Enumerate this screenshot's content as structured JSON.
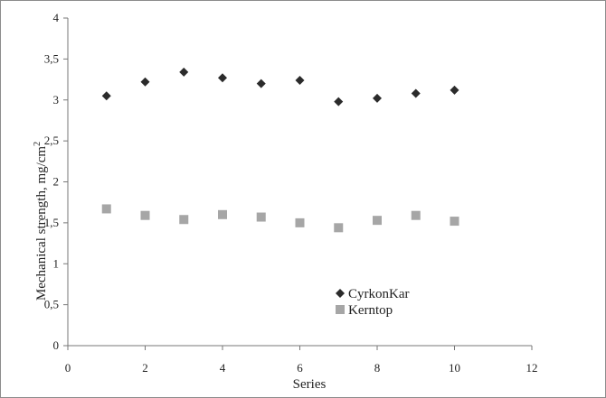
{
  "chart_data": {
    "type": "scatter",
    "xlabel": "Series",
    "ylabel_main": "Mechanical strength, mg/cm",
    "ylabel_sup": "2",
    "xlim": [
      0,
      12
    ],
    "ylim": [
      0,
      4
    ],
    "x_ticks": [
      "0",
      "2",
      "4",
      "6",
      "8",
      "10",
      "12"
    ],
    "y_ticks": [
      "0",
      "0,5",
      "1",
      "1,5",
      "2",
      "2,5",
      "3",
      "3,5",
      "4"
    ],
    "grid": false,
    "legend_position": "lower-right",
    "series": [
      {
        "name": "CyrkonKar",
        "marker": "diamond",
        "color": "#2b2b2b",
        "x": [
          1,
          2,
          3,
          4,
          5,
          6,
          7,
          8,
          9,
          10
        ],
        "y": [
          3.05,
          3.22,
          3.34,
          3.27,
          3.2,
          3.24,
          2.98,
          3.02,
          3.08,
          3.12
        ]
      },
      {
        "name": "Kerntop",
        "marker": "square",
        "color": "#a6a6a6",
        "x": [
          1,
          2,
          3,
          4,
          5,
          6,
          7,
          8,
          9,
          10
        ],
        "y": [
          1.67,
          1.59,
          1.54,
          1.6,
          1.57,
          1.5,
          1.44,
          1.53,
          1.59,
          1.52
        ]
      }
    ]
  }
}
